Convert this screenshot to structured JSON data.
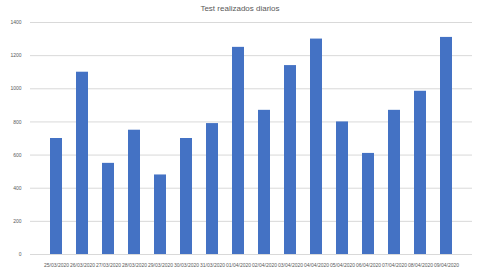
{
  "chart_data": {
    "type": "bar",
    "title": "Test realizados diarios",
    "categories": [
      "25/03/2020",
      "26/03/2020",
      "27/03/2020",
      "28/03/2020",
      "29/03/2020",
      "30/03/2020",
      "31/03/2020",
      "01/04/2020",
      "02/04/2020",
      "03/04/2020",
      "04/04/2020",
      "05/04/2020",
      "06/04/2020",
      "07/04/2020",
      "08/04/2020",
      "09/04/2020"
    ],
    "values": [
      700,
      1100,
      550,
      750,
      480,
      700,
      790,
      1250,
      870,
      1140,
      1300,
      800,
      610,
      870,
      985,
      1310
    ],
    "color": "#4472c4",
    "ylim": [
      0,
      1400
    ],
    "yticks": [
      0,
      200,
      400,
      600,
      800,
      1000,
      1200,
      1400
    ],
    "grid": true
  }
}
